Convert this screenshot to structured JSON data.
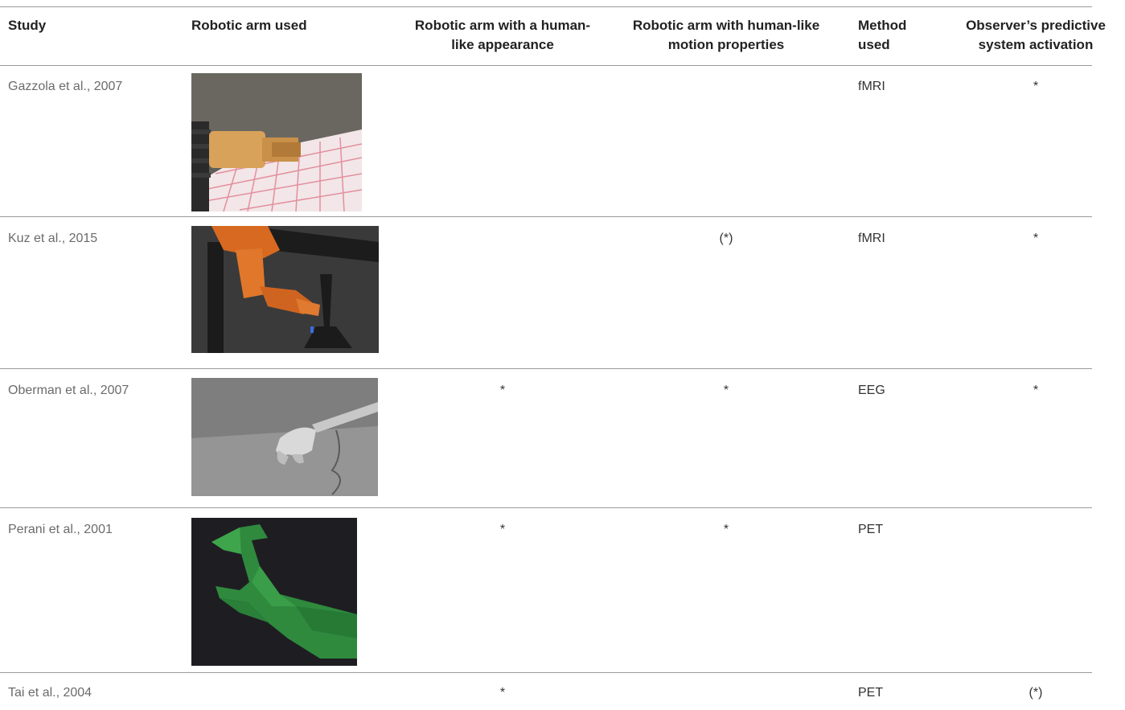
{
  "table": {
    "headers": {
      "study": "Study",
      "arm": "Robotic arm used",
      "appearance": "Robotic arm with a human-like appearance",
      "motion": "Robotic arm with human-like motion properties",
      "method": "Method used",
      "activation": "Observer’s predictive system activation"
    },
    "rows": [
      {
        "study": "Gazzola et al., 2007",
        "appearance": "",
        "motion": "",
        "method": "fMRI",
        "activation": "*"
      },
      {
        "study": "Kuz et al., 2015",
        "appearance": "",
        "motion": "(*)",
        "method": "fMRI",
        "activation": "*"
      },
      {
        "study": "Oberman et al., 2007",
        "appearance": "*",
        "motion": "*",
        "method": "EEG",
        "activation": "*"
      },
      {
        "study": "Perani et al., 2001",
        "appearance": "*",
        "motion": "*",
        "method": "PET",
        "activation": ""
      },
      {
        "study": "Tai et al., 2004",
        "appearance": "*",
        "motion": "",
        "method": "PET",
        "activation": "(*)"
      }
    ]
  }
}
